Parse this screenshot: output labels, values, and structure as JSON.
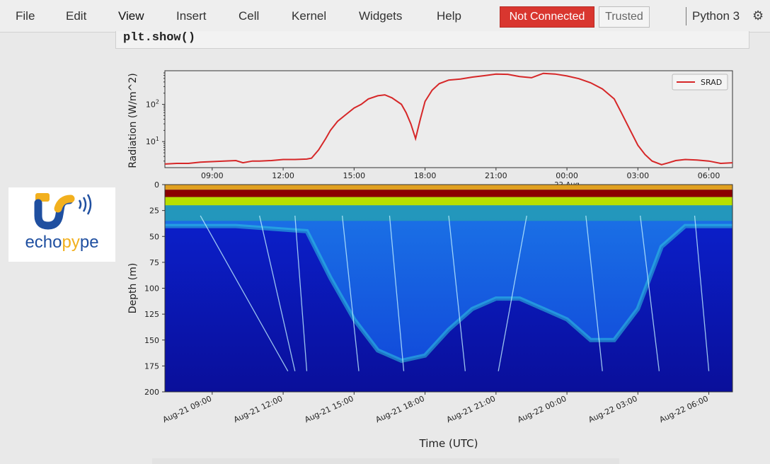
{
  "menu": {
    "items": [
      "File",
      "Edit",
      "View",
      "Insert",
      "Cell",
      "Kernel",
      "Widgets",
      "Help"
    ],
    "status": "Not Connected",
    "trusted": "Trusted",
    "kernel": "Python 3",
    "kernel_icon": "settings-icon"
  },
  "code_cell": {
    "text": "plt.show()"
  },
  "logo": {
    "prefix": "echo",
    "accent": "py",
    "suffix": "pe",
    "colors": {
      "blue": "#1f4fa0",
      "yellow": "#f2b01e"
    }
  },
  "chart_data": [
    {
      "type": "line",
      "title": "",
      "xlabel": "",
      "ylabel": "Radiation (W/m^2)",
      "yscale": "log",
      "ylim": [
        2,
        800
      ],
      "ytick_labels": [
        "10^1",
        "10^2"
      ],
      "xtick_labels": [
        "09:00",
        "12:00",
        "15:00",
        "18:00",
        "21:00",
        "00:00",
        "03:00",
        "06:00"
      ],
      "x_range_hours": [
        7,
        31
      ],
      "legend": {
        "position": "top-right",
        "entries": [
          "SRAD"
        ]
      },
      "series": [
        {
          "name": "SRAD",
          "color": "#d62728",
          "x_hours": [
            7,
            7.5,
            8,
            8.5,
            9,
            9.5,
            10,
            10.3,
            10.7,
            11,
            11.5,
            12,
            12.5,
            13,
            13.2,
            13.5,
            13.8,
            14,
            14.3,
            14.6,
            15,
            15.3,
            15.6,
            16,
            16.3,
            16.6,
            17,
            17.2,
            17.4,
            17.6,
            17.8,
            18,
            18.3,
            18.6,
            19,
            19.5,
            20,
            20.5,
            21,
            21.5,
            22,
            22.5,
            23,
            23.5,
            24,
            24.5,
            25,
            25.5,
            26,
            26.3,
            26.6,
            27,
            27.3,
            27.6,
            28,
            28.3,
            28.6,
            29,
            29.5,
            30,
            30.5,
            31
          ],
          "y": [
            2.5,
            2.6,
            2.6,
            2.8,
            2.9,
            3.0,
            3.1,
            2.7,
            3.0,
            3.0,
            3.1,
            3.3,
            3.3,
            3.4,
            3.6,
            6,
            12,
            20,
            35,
            50,
            80,
            100,
            140,
            170,
            180,
            150,
            100,
            60,
            30,
            12,
            40,
            120,
            240,
            360,
            450,
            480,
            540,
            590,
            650,
            640,
            560,
            520,
            680,
            650,
            580,
            490,
            380,
            260,
            140,
            60,
            25,
            8,
            4.5,
            3.0,
            2.4,
            2.7,
            3.1,
            3.3,
            3.2,
            3.0,
            2.6,
            2.7
          ]
        }
      ]
    },
    {
      "type": "heatmap",
      "title": "",
      "xlabel": "Time (UTC)",
      "ylabel": "Depth (m)",
      "ylim": [
        0,
        200
      ],
      "ytick_labels": [
        "0",
        "25",
        "50",
        "75",
        "100",
        "125",
        "150",
        "175",
        "200"
      ],
      "xtick_labels": [
        "Aug-21 09:00",
        "Aug-21 12:00",
        "Aug-21 15:00",
        "Aug-21 18:00",
        "Aug-21 21:00",
        "Aug-22 00:00",
        "Aug-22 03:00",
        "Aug-22 06:00"
      ],
      "x_range_hours": [
        7,
        31
      ],
      "colormap": "jet",
      "surface_bands": [
        {
          "depth": [
            0,
            5
          ],
          "color": "#e0a020"
        },
        {
          "depth": [
            5,
            12
          ],
          "color": "#8b0000"
        },
        {
          "depth": [
            12,
            20
          ],
          "color": "#b8e000"
        },
        {
          "depth": [
            20,
            35
          ],
          "color": "#2ab0a0"
        }
      ],
      "deep_layer_shallow_m": [
        [
          7,
          40
        ],
        [
          10,
          40
        ],
        [
          13,
          45
        ],
        [
          14,
          90
        ],
        [
          15,
          130
        ],
        [
          16,
          160
        ],
        [
          17,
          170
        ],
        [
          18,
          165
        ],
        [
          19,
          140
        ],
        [
          20,
          120
        ],
        [
          21,
          110
        ],
        [
          22,
          110
        ],
        [
          23,
          120
        ],
        [
          24,
          130
        ],
        [
          25,
          150
        ],
        [
          26,
          150
        ],
        [
          27,
          120
        ],
        [
          28,
          60
        ],
        [
          29,
          40
        ],
        [
          31,
          40
        ]
      ],
      "deep_layer_deep_m": [
        200,
        200
      ]
    }
  ]
}
